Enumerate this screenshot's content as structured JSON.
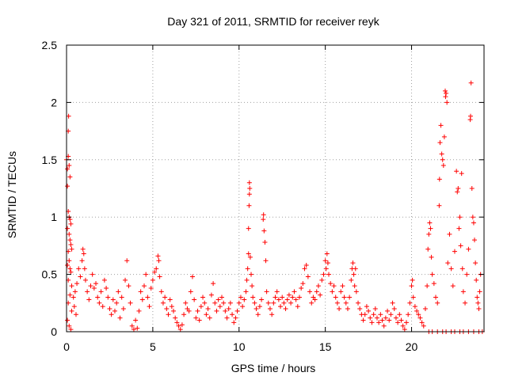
{
  "chart_data": {
    "type": "scatter",
    "title": "Day 321 of 2011, SRMTID for receiver reyk",
    "xlabel": "GPS time / hours",
    "ylabel": "SRMTID / TECUs",
    "xlim": [
      0,
      24.2
    ],
    "ylim": [
      0,
      2.5
    ],
    "x_ticks": [
      0,
      5,
      10,
      15,
      20
    ],
    "x_tick_labels": [
      "0",
      "5",
      "10",
      "15",
      "20"
    ],
    "y_ticks": [
      0,
      0.5,
      1,
      1.5,
      2,
      2.5
    ],
    "y_tick_labels": [
      "0",
      "0.5",
      "1",
      "1.5",
      "2",
      "2.5"
    ],
    "grid": true,
    "marker": "+",
    "color": "#ff0000",
    "series": [
      {
        "name": "SRMTID",
        "points": [
          [
            0.0,
            1.5
          ],
          [
            0.05,
            1.42
          ],
          [
            0.1,
            1.53
          ],
          [
            0.12,
            1.88
          ],
          [
            0.1,
            1.75
          ],
          [
            0.15,
            1.45
          ],
          [
            0.2,
            1.35
          ],
          [
            0.05,
            1.27
          ],
          [
            0.1,
            1.05
          ],
          [
            0.15,
            1.0
          ],
          [
            0.2,
            0.98
          ],
          [
            0.25,
            0.94
          ],
          [
            0.05,
            0.9
          ],
          [
            0.15,
            0.85
          ],
          [
            0.2,
            0.8
          ],
          [
            0.25,
            0.76
          ],
          [
            0.1,
            0.7
          ],
          [
            0.3,
            0.72
          ],
          [
            0.15,
            0.62
          ],
          [
            0.05,
            0.58
          ],
          [
            0.2,
            0.55
          ],
          [
            0.25,
            0.52
          ],
          [
            0.1,
            0.45
          ],
          [
            0.3,
            0.4
          ],
          [
            0.2,
            0.32
          ],
          [
            0.1,
            0.25
          ],
          [
            0.05,
            0.1
          ],
          [
            0.15,
            0.05
          ],
          [
            0.25,
            0.02
          ],
          [
            0.3,
            0.18
          ],
          [
            0.4,
            0.3
          ],
          [
            0.45,
            0.22
          ],
          [
            0.5,
            0.35
          ],
          [
            0.55,
            0.15
          ],
          [
            0.6,
            0.42
          ],
          [
            0.7,
            0.55
          ],
          [
            0.8,
            0.48
          ],
          [
            0.9,
            0.62
          ],
          [
            0.95,
            0.72
          ],
          [
            1.0,
            0.68
          ],
          [
            1.05,
            0.55
          ],
          [
            1.1,
            0.45
          ],
          [
            1.2,
            0.35
          ],
          [
            1.3,
            0.28
          ],
          [
            1.4,
            0.4
          ],
          [
            1.5,
            0.5
          ],
          [
            1.6,
            0.38
          ],
          [
            1.7,
            0.42
          ],
          [
            1.8,
            0.3
          ],
          [
            1.9,
            0.25
          ],
          [
            2.0,
            0.35
          ],
          [
            2.1,
            0.22
          ],
          [
            2.2,
            0.45
          ],
          [
            2.3,
            0.38
          ],
          [
            2.4,
            0.3
          ],
          [
            2.5,
            0.2
          ],
          [
            2.6,
            0.15
          ],
          [
            2.7,
            0.28
          ],
          [
            2.8,
            0.18
          ],
          [
            2.9,
            0.25
          ],
          [
            3.0,
            0.35
          ],
          [
            3.1,
            0.12
          ],
          [
            3.2,
            0.3
          ],
          [
            3.3,
            0.2
          ],
          [
            3.4,
            0.45
          ],
          [
            3.5,
            0.62
          ],
          [
            3.6,
            0.4
          ],
          [
            3.7,
            0.25
          ],
          [
            3.8,
            0.05
          ],
          [
            3.9,
            0.02
          ],
          [
            4.0,
            0.1
          ],
          [
            4.1,
            0.03
          ],
          [
            4.2,
            0.18
          ],
          [
            4.3,
            0.35
          ],
          [
            4.4,
            0.28
          ],
          [
            4.5,
            0.4
          ],
          [
            4.6,
            0.5
          ],
          [
            4.7,
            0.3
          ],
          [
            4.8,
            0.22
          ],
          [
            4.9,
            0.38
          ],
          [
            5.0,
            0.45
          ],
          [
            5.1,
            0.52
          ],
          [
            5.2,
            0.55
          ],
          [
            5.3,
            0.66
          ],
          [
            5.35,
            0.62
          ],
          [
            5.4,
            0.48
          ],
          [
            5.5,
            0.35
          ],
          [
            5.6,
            0.25
          ],
          [
            5.7,
            0.3
          ],
          [
            5.8,
            0.2
          ],
          [
            5.9,
            0.15
          ],
          [
            6.0,
            0.28
          ],
          [
            6.1,
            0.22
          ],
          [
            6.2,
            0.18
          ],
          [
            6.3,
            0.12
          ],
          [
            6.4,
            0.08
          ],
          [
            6.5,
            0.05
          ],
          [
            6.6,
            0.02
          ],
          [
            6.7,
            0.06
          ],
          [
            6.8,
            0.15
          ],
          [
            6.9,
            0.25
          ],
          [
            7.0,
            0.2
          ],
          [
            7.1,
            0.18
          ],
          [
            7.2,
            0.35
          ],
          [
            7.3,
            0.48
          ],
          [
            7.4,
            0.28
          ],
          [
            7.5,
            0.12
          ],
          [
            7.6,
            0.18
          ],
          [
            7.7,
            0.1
          ],
          [
            7.8,
            0.22
          ],
          [
            7.9,
            0.3
          ],
          [
            8.0,
            0.25
          ],
          [
            8.1,
            0.15
          ],
          [
            8.2,
            0.2
          ],
          [
            8.3,
            0.12
          ],
          [
            8.4,
            0.32
          ],
          [
            8.5,
            0.42
          ],
          [
            8.6,
            0.25
          ],
          [
            8.7,
            0.18
          ],
          [
            8.8,
            0.28
          ],
          [
            8.9,
            0.22
          ],
          [
            9.0,
            0.3
          ],
          [
            9.1,
            0.25
          ],
          [
            9.2,
            0.18
          ],
          [
            9.3,
            0.12
          ],
          [
            9.4,
            0.2
          ],
          [
            9.5,
            0.25
          ],
          [
            9.6,
            0.15
          ],
          [
            9.7,
            0.08
          ],
          [
            9.8,
            0.12
          ],
          [
            9.9,
            0.18
          ],
          [
            10.0,
            0.25
          ],
          [
            10.1,
            0.3
          ],
          [
            10.2,
            0.22
          ],
          [
            10.3,
            0.28
          ],
          [
            10.4,
            0.35
          ],
          [
            10.45,
            0.45
          ],
          [
            10.5,
            0.55
          ],
          [
            10.55,
            0.68
          ],
          [
            10.6,
            1.3
          ],
          [
            10.62,
            1.25
          ],
          [
            10.6,
            1.2
          ],
          [
            10.58,
            1.1
          ],
          [
            10.55,
            0.9
          ],
          [
            10.65,
            0.65
          ],
          [
            10.7,
            0.5
          ],
          [
            10.75,
            0.4
          ],
          [
            10.8,
            0.3
          ],
          [
            10.9,
            0.25
          ],
          [
            11.0,
            0.2
          ],
          [
            11.1,
            0.15
          ],
          [
            11.2,
            0.22
          ],
          [
            11.3,
            0.28
          ],
          [
            11.4,
            0.98
          ],
          [
            11.42,
            1.02
          ],
          [
            11.45,
            0.88
          ],
          [
            11.5,
            0.78
          ],
          [
            11.55,
            0.62
          ],
          [
            11.6,
            0.35
          ],
          [
            11.7,
            0.25
          ],
          [
            11.8,
            0.2
          ],
          [
            11.9,
            0.15
          ],
          [
            12.0,
            0.25
          ],
          [
            12.1,
            0.3
          ],
          [
            12.2,
            0.35
          ],
          [
            12.3,
            0.28
          ],
          [
            12.4,
            0.22
          ],
          [
            12.5,
            0.3
          ],
          [
            12.6,
            0.25
          ],
          [
            12.7,
            0.2
          ],
          [
            12.8,
            0.28
          ],
          [
            12.9,
            0.32
          ],
          [
            13.0,
            0.25
          ],
          [
            13.1,
            0.3
          ],
          [
            13.2,
            0.35
          ],
          [
            13.3,
            0.28
          ],
          [
            13.4,
            0.22
          ],
          [
            13.5,
            0.3
          ],
          [
            13.6,
            0.38
          ],
          [
            13.7,
            0.42
          ],
          [
            13.8,
            0.55
          ],
          [
            13.9,
            0.58
          ],
          [
            14.0,
            0.48
          ],
          [
            14.1,
            0.35
          ],
          [
            14.2,
            0.25
          ],
          [
            14.3,
            0.3
          ],
          [
            14.4,
            0.28
          ],
          [
            14.5,
            0.35
          ],
          [
            14.6,
            0.4
          ],
          [
            14.7,
            0.32
          ],
          [
            14.8,
            0.45
          ],
          [
            14.9,
            0.5
          ],
          [
            15.0,
            0.62
          ],
          [
            15.05,
            0.55
          ],
          [
            15.1,
            0.68
          ],
          [
            15.15,
            0.6
          ],
          [
            15.2,
            0.5
          ],
          [
            15.3,
            0.42
          ],
          [
            15.4,
            0.35
          ],
          [
            15.5,
            0.4
          ],
          [
            15.6,
            0.3
          ],
          [
            15.7,
            0.25
          ],
          [
            15.8,
            0.2
          ],
          [
            15.9,
            0.35
          ],
          [
            16.0,
            0.4
          ],
          [
            16.1,
            0.3
          ],
          [
            16.2,
            0.25
          ],
          [
            16.3,
            0.2
          ],
          [
            16.4,
            0.3
          ],
          [
            16.5,
            0.45
          ],
          [
            16.55,
            0.55
          ],
          [
            16.6,
            0.6
          ],
          [
            16.65,
            0.5
          ],
          [
            16.7,
            0.4
          ],
          [
            16.75,
            0.55
          ],
          [
            16.8,
            0.35
          ],
          [
            16.9,
            0.25
          ],
          [
            17.0,
            0.2
          ],
          [
            17.1,
            0.15
          ],
          [
            17.2,
            0.1
          ],
          [
            17.3,
            0.15
          ],
          [
            17.4,
            0.22
          ],
          [
            17.5,
            0.18
          ],
          [
            17.6,
            0.12
          ],
          [
            17.7,
            0.08
          ],
          [
            17.8,
            0.15
          ],
          [
            17.9,
            0.2
          ],
          [
            18.0,
            0.12
          ],
          [
            18.1,
            0.08
          ],
          [
            18.2,
            0.15
          ],
          [
            18.3,
            0.1
          ],
          [
            18.4,
            0.05
          ],
          [
            18.5,
            0.12
          ],
          [
            18.6,
            0.18
          ],
          [
            18.7,
            0.1
          ],
          [
            18.8,
            0.15
          ],
          [
            18.9,
            0.25
          ],
          [
            19.0,
            0.2
          ],
          [
            19.1,
            0.12
          ],
          [
            19.2,
            0.08
          ],
          [
            19.3,
            0.15
          ],
          [
            19.4,
            0.1
          ],
          [
            19.5,
            0.05
          ],
          [
            19.6,
            0.02
          ],
          [
            19.7,
            0.08
          ],
          [
            19.8,
            0.15
          ],
          [
            19.9,
            0.25
          ],
          [
            20.0,
            0.4
          ],
          [
            20.05,
            0.45
          ],
          [
            20.1,
            0.3
          ],
          [
            20.2,
            0.22
          ],
          [
            20.3,
            0.18
          ],
          [
            20.4,
            0.15
          ],
          [
            20.5,
            0.12
          ],
          [
            20.6,
            0.08
          ],
          [
            20.7,
            0.05
          ],
          [
            20.8,
            0.2
          ],
          [
            20.9,
            0.4
          ],
          [
            20.95,
            0.72
          ],
          [
            21.0,
            0.85
          ],
          [
            21.05,
            0.95
          ],
          [
            21.1,
            0.9
          ],
          [
            21.15,
            0.65
          ],
          [
            21.2,
            0.5
          ],
          [
            21.3,
            0.42
          ],
          [
            21.4,
            0.3
          ],
          [
            21.5,
            0.25
          ],
          [
            21.6,
            1.1
          ],
          [
            21.62,
            1.33
          ],
          [
            21.65,
            1.65
          ],
          [
            21.7,
            1.8
          ],
          [
            21.75,
            1.55
          ],
          [
            21.8,
            1.5
          ],
          [
            21.85,
            1.45
          ],
          [
            21.9,
            1.7
          ],
          [
            21.95,
            2.1
          ],
          [
            21.97,
            2.05
          ],
          [
            22.0,
            2.08
          ],
          [
            22.05,
            2.0
          ],
          [
            22.1,
            0.6
          ],
          [
            22.2,
            0.85
          ],
          [
            22.3,
            0.55
          ],
          [
            22.4,
            0.4
          ],
          [
            22.5,
            0.7
          ],
          [
            22.6,
            1.4
          ],
          [
            22.65,
            1.22
          ],
          [
            22.7,
            1.25
          ],
          [
            22.75,
            0.9
          ],
          [
            22.8,
            1.0
          ],
          [
            22.85,
            0.75
          ],
          [
            22.9,
            1.38
          ],
          [
            22.95,
            0.55
          ],
          [
            23.0,
            0.35
          ],
          [
            23.1,
            0.25
          ],
          [
            23.2,
            0.5
          ],
          [
            23.3,
            0.72
          ],
          [
            23.4,
            1.85
          ],
          [
            23.42,
            1.88
          ],
          [
            23.45,
            2.17
          ],
          [
            23.5,
            1.25
          ],
          [
            23.55,
            1.0
          ],
          [
            23.6,
            0.95
          ],
          [
            23.65,
            0.8
          ],
          [
            23.7,
            0.6
          ],
          [
            23.75,
            0.45
          ],
          [
            23.8,
            0.3
          ],
          [
            23.85,
            0.25
          ],
          [
            23.9,
            0.2
          ],
          [
            23.95,
            0.35
          ],
          [
            24.0,
            0.5
          ],
          [
            21.0,
            0.0
          ],
          [
            21.2,
            0.0
          ],
          [
            21.5,
            0.0
          ],
          [
            21.8,
            0.0
          ],
          [
            22.0,
            0.0
          ],
          [
            22.3,
            0.0
          ],
          [
            22.5,
            0.0
          ],
          [
            22.8,
            0.0
          ],
          [
            23.0,
            0.0
          ],
          [
            23.3,
            0.0
          ],
          [
            23.6,
            0.0
          ],
          [
            23.9,
            0.0
          ],
          [
            24.1,
            0.0
          ]
        ]
      }
    ]
  }
}
